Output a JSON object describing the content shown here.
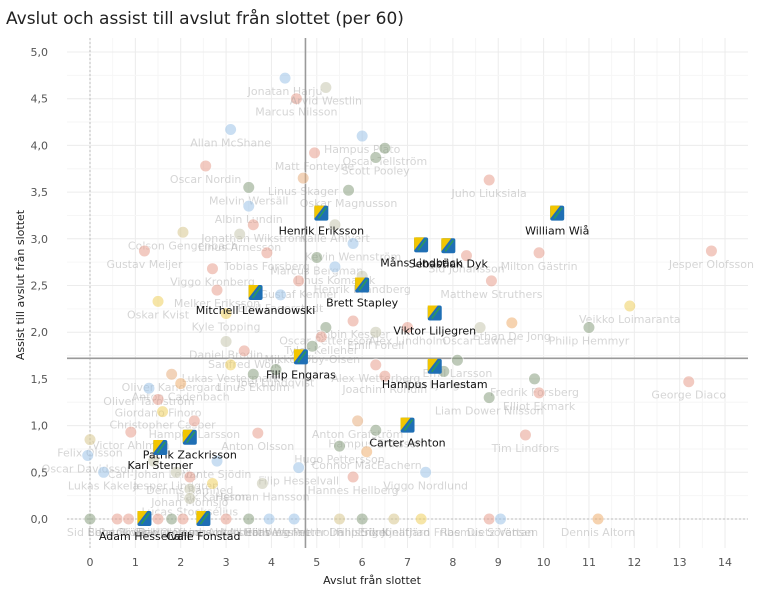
{
  "chart_data": {
    "type": "scatter",
    "title": "Avslut och assist till avslut från slottet (per 60)",
    "xlabel": "Avslut från slottet",
    "ylabel": "Assist till avslut från slottet",
    "xlim": [
      -0.5,
      14.5
    ],
    "ylim": [
      -0.3,
      5.15
    ],
    "x_ticks": [
      0,
      1,
      2,
      3,
      4,
      5,
      6,
      7,
      8,
      9,
      10,
      11,
      12,
      13,
      14
    ],
    "x_tick_labels": [
      "0",
      "1",
      "2",
      "3",
      "4",
      "5",
      "6",
      "7",
      "8",
      "9",
      "10",
      "11",
      "12",
      "13",
      "14"
    ],
    "y_ticks": [
      0,
      0.5,
      1,
      1.5,
      2,
      2.5,
      3,
      3.5,
      4,
      4.5,
      5
    ],
    "y_tick_labels": [
      "0,0",
      "0,5",
      "1,0",
      "1,5",
      "2,0",
      "2,5",
      "3,0",
      "3,5",
      "4,0",
      "4,5",
      "5,0"
    ],
    "grid": true,
    "reference_lines": {
      "x_mean": 4.75,
      "y_mean": 1.72,
      "x_zero_dotted": 0,
      "y_zero_dotted": 0
    },
    "highlight_color": "#1f6fb5",
    "highlight_accent": "#f2c500",
    "highlighted_players": [
      {
        "name": "William Wiå",
        "x": 10.3,
        "y": 3.27
      },
      {
        "name": "Henrik Eriksson",
        "x": 5.1,
        "y": 3.27
      },
      {
        "name": "Måns Lindbäck",
        "x": 7.3,
        "y": 2.93
      },
      {
        "name": "Sebastian Dyk",
        "x": 7.9,
        "y": 2.92
      },
      {
        "name": "Brett Stapley",
        "x": 6.0,
        "y": 2.5
      },
      {
        "name": "Mitchell Lewandowski",
        "x": 3.65,
        "y": 2.42
      },
      {
        "name": "Viktor Liljegren",
        "x": 7.6,
        "y": 2.2
      },
      {
        "name": "Filip Engaras",
        "x": 4.65,
        "y": 1.73
      },
      {
        "name": "Hampus Harlestam",
        "x": 7.6,
        "y": 1.63
      },
      {
        "name": "Carter Ashton",
        "x": 7.0,
        "y": 1.0
      },
      {
        "name": "Patrik Zackrisson",
        "x": 2.2,
        "y": 0.87
      },
      {
        "name": "Karl Sterner",
        "x": 1.55,
        "y": 0.76
      },
      {
        "name": "Adam Hesselvall",
        "x": 1.2,
        "y": 0.0
      },
      {
        "name": "Calle Fonstad",
        "x": 2.5,
        "y": 0.0
      }
    ],
    "other_players": [
      {
        "name": "Jonatan Harju",
        "x": 4.3,
        "y": 4.72,
        "c": "#9ec4e8"
      },
      {
        "name": "Marcus Nilsson",
        "x": 4.55,
        "y": 4.5,
        "c": "#e8a090"
      },
      {
        "name": "Arvid Westlin",
        "x": 5.2,
        "y": 4.62,
        "c": "#c8c8b0"
      },
      {
        "name": "Allan McShane",
        "x": 3.1,
        "y": 4.17,
        "c": "#9ec4e8"
      },
      {
        "name": "Hampus Plato",
        "x": 6.0,
        "y": 4.1,
        "c": "#9ec4e8"
      },
      {
        "name": "Oscar Tellström",
        "x": 6.5,
        "y": 3.97,
        "c": "#8aa080"
      },
      {
        "name": "Scott Pooley",
        "x": 6.3,
        "y": 3.87,
        "c": "#8aa080"
      },
      {
        "name": "Matt Fonteyne",
        "x": 4.95,
        "y": 3.92,
        "c": "#e8a090"
      },
      {
        "name": "Oscar Nordin",
        "x": 2.55,
        "y": 3.78,
        "c": "#e8a090"
      },
      {
        "name": "Linus Skager",
        "x": 4.7,
        "y": 3.65,
        "c": "#e8b080"
      },
      {
        "name": "Melvin Wersäll",
        "x": 3.5,
        "y": 3.55,
        "c": "#8aa080"
      },
      {
        "name": "Oskar Magnusson",
        "x": 5.7,
        "y": 3.52,
        "c": "#8aa080"
      },
      {
        "name": "Juho Liuksiala",
        "x": 8.8,
        "y": 3.63,
        "c": "#e8a090"
      },
      {
        "name": "Albin Lundin",
        "x": 3.5,
        "y": 3.35,
        "c": "#9ec4e8"
      },
      {
        "name": "Jonathan Wikström",
        "x": 3.6,
        "y": 3.15,
        "c": "#e8a090"
      },
      {
        "name": "Linus Arnesson",
        "x": 3.3,
        "y": 3.05,
        "c": "#c8c8b0"
      },
      {
        "name": "Kalle Ahlvert",
        "x": 5.4,
        "y": 3.15,
        "c": "#c8c8b0"
      },
      {
        "name": "Kevin Wennström",
        "x": 5.8,
        "y": 2.95,
        "c": "#9ec4e8"
      },
      {
        "name": "Colson Gengenbach",
        "x": 2.05,
        "y": 3.07,
        "c": "#d8c890"
      },
      {
        "name": "Gustav Meijer",
        "x": 1.2,
        "y": 2.87,
        "c": "#e8a090"
      },
      {
        "name": "Viggo Kronberg",
        "x": 2.7,
        "y": 2.68,
        "c": "#e8a090"
      },
      {
        "name": "Tobias Forsberg",
        "x": 3.9,
        "y": 2.85,
        "c": "#e8a090"
      },
      {
        "name": "Marcus Bergman",
        "x": 5.0,
        "y": 2.8,
        "c": "#8aa080"
      },
      {
        "name": "Linus Komarek",
        "x": 5.4,
        "y": 2.7,
        "c": "#9ec4e8"
      },
      {
        "name": "Henrik Brandberg",
        "x": 6.0,
        "y": 2.6,
        "c": "#c8c8b0"
      },
      {
        "name": "Sid Johansson",
        "x": 8.3,
        "y": 2.82,
        "c": "#e8a090"
      },
      {
        "name": "Milton Gästrin",
        "x": 9.9,
        "y": 2.85,
        "c": "#e8a090"
      },
      {
        "name": "Jesper Olofsson",
        "x": 13.7,
        "y": 2.87,
        "c": "#e8a090"
      },
      {
        "name": "Gustaf Kenner",
        "x": 4.6,
        "y": 2.55,
        "c": "#e8a090"
      },
      {
        "name": "Melker Eriksson",
        "x": 2.8,
        "y": 2.45,
        "c": "#e8a090"
      },
      {
        "name": "Emil Fagerstedt",
        "x": 4.2,
        "y": 2.4,
        "c": "#9ec4e8"
      },
      {
        "name": "Matthew Struthers",
        "x": 8.85,
        "y": 2.55,
        "c": "#e8a090"
      },
      {
        "name": "Oskar Kvist",
        "x": 1.5,
        "y": 2.33,
        "c": "#f0d060"
      },
      {
        "name": "Kyle Topping",
        "x": 3.0,
        "y": 2.2,
        "c": "#f0d060"
      },
      {
        "name": "Robin Kessler",
        "x": 5.8,
        "y": 2.12,
        "c": "#e8a090"
      },
      {
        "name": "Oscar Pettersson",
        "x": 5.2,
        "y": 2.05,
        "c": "#8aa080"
      },
      {
        "name": "Tyler Kelleher",
        "x": 5.1,
        "y": 1.95,
        "c": "#e8a090"
      },
      {
        "name": "Emil Forell",
        "x": 6.3,
        "y": 2.0,
        "c": "#c8c8b0"
      },
      {
        "name": "Alex Lindholm",
        "x": 7.0,
        "y": 2.05,
        "c": "#e8a090"
      },
      {
        "name": "Ethan De Jong",
        "x": 9.3,
        "y": 2.1,
        "c": "#f0b070"
      },
      {
        "name": "Oscar Lawner",
        "x": 8.6,
        "y": 2.05,
        "c": "#c8c8b0"
      },
      {
        "name": "Veikko Loimaranta",
        "x": 11.9,
        "y": 2.28,
        "c": "#f0d060"
      },
      {
        "name": "Philip Hemmyr",
        "x": 11.0,
        "y": 2.05,
        "c": "#8aa080"
      },
      {
        "name": "Mikkel Øby-Olsen",
        "x": 4.9,
        "y": 1.85,
        "c": "#8aa080"
      },
      {
        "name": "Daniel Brodin",
        "x": 3.0,
        "y": 1.9,
        "c": "#c8c8b0"
      },
      {
        "name": "Sanfred Wolk",
        "x": 3.4,
        "y": 1.8,
        "c": "#e8a090"
      },
      {
        "name": "Lukas Vestermark",
        "x": 3.1,
        "y": 1.65,
        "c": "#f0d060"
      },
      {
        "name": "Oliver Kandergard",
        "x": 1.8,
        "y": 1.55,
        "c": "#e8b080"
      },
      {
        "name": "Linus Ekholm",
        "x": 3.6,
        "y": 1.55,
        "c": "#8aa080"
      },
      {
        "name": "Joel Lundqvist",
        "x": 4.1,
        "y": 1.6,
        "c": "#8aa080"
      },
      {
        "name": "Alex Wetterberg",
        "x": 6.3,
        "y": 1.65,
        "c": "#e8a090"
      },
      {
        "name": "Emil Larsson",
        "x": 8.1,
        "y": 1.7,
        "c": "#8aa080"
      },
      {
        "name": "Joachim Rohdin",
        "x": 6.5,
        "y": 1.53,
        "c": "#e8a090"
      },
      {
        "name": "Tom Ljungman",
        "x": 7.8,
        "y": 1.58,
        "c": "#8aa080"
      },
      {
        "name": "Anton Cadenbach",
        "x": 2.0,
        "y": 1.45,
        "c": "#f0b070"
      },
      {
        "name": "Oliver Tärnström",
        "x": 1.3,
        "y": 1.4,
        "c": "#9ec4e8"
      },
      {
        "name": "Giordano Finoro",
        "x": 1.5,
        "y": 1.28,
        "c": "#e8a090"
      },
      {
        "name": "Fredrik Forsberg",
        "x": 9.8,
        "y": 1.5,
        "c": "#8aa080"
      },
      {
        "name": "George Diaco",
        "x": 13.2,
        "y": 1.47,
        "c": "#e8a090"
      },
      {
        "name": "Liam Dower Nilsson",
        "x": 8.8,
        "y": 1.3,
        "c": "#8aa080"
      },
      {
        "name": "Elliot Ekmark",
        "x": 9.9,
        "y": 1.35,
        "c": "#e8a090"
      },
      {
        "name": "Christopher Casper",
        "x": 1.6,
        "y": 1.15,
        "c": "#f0d060"
      },
      {
        "name": "Hampus Larsson",
        "x": 2.3,
        "y": 1.05,
        "c": "#e8a090"
      },
      {
        "name": "Anton Grafström",
        "x": 5.9,
        "y": 1.05,
        "c": "#e8b080"
      },
      {
        "name": "Hampus Eriksson",
        "x": 6.3,
        "y": 0.95,
        "c": "#8aa080"
      },
      {
        "name": "Victor Ahlman",
        "x": 0.9,
        "y": 0.93,
        "c": "#e8a090"
      },
      {
        "name": "Anton Olsson",
        "x": 3.7,
        "y": 0.92,
        "c": "#e8a090"
      },
      {
        "name": "Tim Lindfors",
        "x": 9.6,
        "y": 0.9,
        "c": "#e8a090"
      },
      {
        "name": "Felix Olsson",
        "x": 0.0,
        "y": 0.85,
        "c": "#d8c890"
      },
      {
        "name": "Hugo Pettersson",
        "x": 5.5,
        "y": 0.78,
        "c": "#8aa080"
      },
      {
        "name": "Connor MacEachern",
        "x": 6.1,
        "y": 0.72,
        "c": "#f0b070"
      },
      {
        "name": "Oscar Davidsson",
        "x": -0.05,
        "y": 0.68,
        "c": "#9ec4e8"
      },
      {
        "name": "Carl-Johan Lerby",
        "x": 1.4,
        "y": 0.62,
        "c": "#c8c8b0"
      },
      {
        "name": "Vante Sjödin",
        "x": 2.8,
        "y": 0.62,
        "c": "#9ec4e8"
      },
      {
        "name": "Lukas Kakela",
        "x": 0.3,
        "y": 0.5,
        "c": "#9ec4e8"
      },
      {
        "name": "Jesper Lindgren",
        "x": 1.9,
        "y": 0.5,
        "c": "#c8c8b0"
      },
      {
        "name": "Filip Hesselvall",
        "x": 4.6,
        "y": 0.55,
        "c": "#9ec4e8"
      },
      {
        "name": "Viggo Nordlund",
        "x": 7.4,
        "y": 0.5,
        "c": "#9ec4e8"
      },
      {
        "name": "Dennis Rämhed",
        "x": 2.2,
        "y": 0.45,
        "c": "#e8a090"
      },
      {
        "name": "Isak Karlsson",
        "x": 2.7,
        "y": 0.38,
        "c": "#f0d060"
      },
      {
        "name": "Herman Hansson",
        "x": 3.8,
        "y": 0.38,
        "c": "#c8c8b0"
      },
      {
        "name": "Hannes Hellberg",
        "x": 5.8,
        "y": 0.45,
        "c": "#e8a090"
      },
      {
        "name": "Johan Mörnsjö",
        "x": 2.2,
        "y": 0.32,
        "c": "#c8c8b0"
      },
      {
        "name": "Lucas Stocksélius",
        "x": 2.2,
        "y": 0.22,
        "c": "#c8c8b0"
      },
      {
        "name": "Sid Berg",
        "x": 0.0,
        "y": 0.0,
        "c": "#8aa080"
      },
      {
        "name": "Ebbe Björk",
        "x": 0.6,
        "y": 0.0,
        "c": "#e8a090"
      },
      {
        "name": "Patrik Glad",
        "x": 0.85,
        "y": 0.0,
        "c": "#e8a090"
      },
      {
        "name": "Oliver Hammar",
        "x": 1.5,
        "y": 0.0,
        "c": "#e8a090"
      },
      {
        "name": "Erik Olofsson",
        "x": 1.8,
        "y": 0.0,
        "c": "#8aa080"
      },
      {
        "name": "David Bernhardt",
        "x": 2.05,
        "y": 0.0,
        "c": "#e8a090"
      },
      {
        "name": "Linus Hultström",
        "x": 3.0,
        "y": 0.0,
        "c": "#e8a090"
      },
      {
        "name": "Anton Hallberg",
        "x": 3.5,
        "y": 0.0,
        "c": "#8aa080"
      },
      {
        "name": "Albert Wesslau",
        "x": 3.95,
        "y": 0.0,
        "c": "#9ec4e8"
      },
      {
        "name": "Elias Wennerholm",
        "x": 4.5,
        "y": 0.0,
        "c": "#9ec4e8"
      },
      {
        "name": "Petter Dahlström",
        "x": 5.5,
        "y": 0.0,
        "c": "#d8c890"
      },
      {
        "name": "Filip Sigel",
        "x": 6.0,
        "y": 0.0,
        "c": "#8aa080"
      },
      {
        "name": "Erik Kjellfjärd",
        "x": 6.7,
        "y": 0.0,
        "c": "#d8c890"
      },
      {
        "name": "Jonathan Fribe",
        "x": 7.3,
        "y": 0.0,
        "c": "#f0d060"
      },
      {
        "name": "Rasmus Sörensen",
        "x": 8.8,
        "y": 0.0,
        "c": "#e8a090"
      },
      {
        "name": "Dietz Vättan",
        "x": 9.05,
        "y": 0.0,
        "c": "#9ec4e8"
      },
      {
        "name": "Dennis Altorn",
        "x": 11.2,
        "y": 0.0,
        "c": "#f0b070"
      }
    ]
  }
}
